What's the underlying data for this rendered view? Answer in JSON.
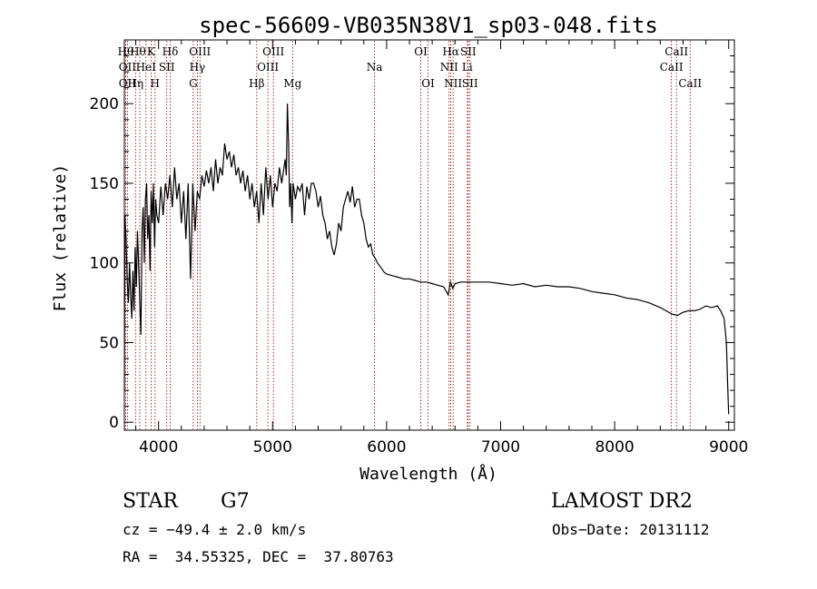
{
  "chart_data": {
    "type": "line",
    "title": "spec-56609-VB035N38V1_sp03-048.fits",
    "xlabel": "Wavelength (Å)",
    "ylabel": "Flux (relative)",
    "xlim": [
      3700,
      9050
    ],
    "ylim": [
      -5,
      240
    ],
    "xticks": [
      4000,
      5000,
      6000,
      7000,
      8000,
      9000
    ],
    "yticks": [
      0,
      50,
      100,
      150,
      200
    ],
    "series": [
      {
        "name": "spectrum",
        "x": [
          3700,
          3705,
          3715,
          3725,
          3735,
          3745,
          3755,
          3765,
          3775,
          3785,
          3795,
          3805,
          3815,
          3825,
          3835,
          3845,
          3855,
          3865,
          3875,
          3885,
          3895,
          3905,
          3915,
          3925,
          3935,
          3945,
          3955,
          3965,
          3975,
          3985,
          4000,
          4020,
          4040,
          4060,
          4080,
          4100,
          4120,
          4140,
          4160,
          4180,
          4200,
          4220,
          4240,
          4260,
          4280,
          4300,
          4320,
          4340,
          4360,
          4380,
          4400,
          4420,
          4440,
          4460,
          4480,
          4500,
          4520,
          4540,
          4560,
          4580,
          4600,
          4620,
          4640,
          4660,
          4680,
          4700,
          4720,
          4740,
          4760,
          4780,
          4800,
          4820,
          4840,
          4860,
          4880,
          4900,
          4920,
          4940,
          4960,
          4980,
          5000,
          5020,
          5040,
          5060,
          5080,
          5100,
          5110,
          5120,
          5130,
          5140,
          5150,
          5160,
          5170,
          5180,
          5200,
          5220,
          5240,
          5260,
          5280,
          5300,
          5320,
          5340,
          5360,
          5380,
          5400,
          5420,
          5440,
          5460,
          5480,
          5500,
          5520,
          5540,
          5560,
          5580,
          5600,
          5620,
          5640,
          5660,
          5680,
          5700,
          5720,
          5740,
          5760,
          5780,
          5800,
          5820,
          5840,
          5860,
          5880,
          5900,
          5920,
          5940,
          5960,
          5980,
          6000,
          6050,
          6100,
          6150,
          6200,
          6250,
          6300,
          6350,
          6400,
          6450,
          6500,
          6540,
          6560,
          6570,
          6580,
          6600,
          6650,
          6700,
          6750,
          6800,
          6900,
          7000,
          7100,
          7200,
          7300,
          7400,
          7500,
          7600,
          7700,
          7800,
          7900,
          8000,
          8100,
          8200,
          8300,
          8400,
          8450,
          8500,
          8550,
          8600,
          8650,
          8700,
          8750,
          8800,
          8850,
          8900,
          8930,
          8960,
          8980,
          8990,
          9000
        ],
        "y": [
          20,
          130,
          115,
          90,
          75,
          100,
          80,
          65,
          95,
          70,
          110,
          85,
          120,
          100,
          75,
          55,
          120,
          135,
          100,
          140,
          150,
          115,
          130,
          95,
          145,
          125,
          150,
          110,
          140,
          130,
          125,
          148,
          130,
          150,
          140,
          155,
          135,
          160,
          140,
          150,
          125,
          145,
          115,
          150,
          90,
          150,
          120,
          145,
          140,
          155,
          148,
          158,
          150,
          160,
          145,
          165,
          150,
          160,
          155,
          175,
          165,
          170,
          160,
          168,
          155,
          160,
          150,
          158,
          145,
          155,
          140,
          150,
          135,
          145,
          125,
          150,
          130,
          160,
          140,
          155,
          135,
          150,
          145,
          160,
          150,
          160,
          165,
          155,
          200,
          175,
          135,
          150,
          125,
          150,
          140,
          148,
          145,
          150,
          130,
          148,
          140,
          150,
          150,
          145,
          135,
          142,
          130,
          125,
          115,
          120,
          110,
          105,
          112,
          125,
          120,
          135,
          140,
          145,
          138,
          148,
          135,
          140,
          140,
          130,
          125,
          115,
          110,
          112,
          105,
          103,
          100,
          98,
          96,
          94,
          93,
          92,
          91,
          90,
          90,
          89,
          88,
          88,
          87,
          86,
          85,
          80,
          88,
          86,
          84,
          87,
          88,
          88,
          88,
          88,
          88,
          87,
          86,
          87,
          85,
          86,
          85,
          85,
          84,
          82,
          81,
          80,
          78,
          77,
          75,
          72,
          70,
          68,
          67,
          69,
          70,
          70,
          71,
          73,
          72,
          73,
          70,
          65,
          50,
          25,
          5
        ]
      }
    ],
    "lines": [
      {
        "wl": 3712,
        "label": "Hθ",
        "row": 1,
        "hshift": 0
      },
      {
        "wl": 3727,
        "label": "OII",
        "row": 2,
        "hshift": 0
      },
      {
        "wl": 3727,
        "label": "OII",
        "row": 3,
        "hshift": 0
      },
      {
        "wl": 3798,
        "label": "Hη",
        "row": 3,
        "hshift": 0
      },
      {
        "wl": 3835,
        "label": "Hθ",
        "row": 1,
        "hshift": -2
      },
      {
        "wl": 3889,
        "label": "HeI",
        "row": 2,
        "hshift": 0
      },
      {
        "wl": 3934,
        "label": "K",
        "row": 1,
        "hshift": 0
      },
      {
        "wl": 3969,
        "label": "H",
        "row": 3,
        "hshift": 0
      },
      {
        "wl": 4072,
        "label": "SII",
        "row": 2,
        "hshift": 0
      },
      {
        "wl": 4102,
        "label": "Hδ",
        "row": 1,
        "hshift": 0
      },
      {
        "wl": 4304,
        "label": "G",
        "row": 3,
        "hshift": 0
      },
      {
        "wl": 4340,
        "label": "Hγ",
        "row": 2,
        "hshift": 0
      },
      {
        "wl": 4363,
        "label": "OIII",
        "row": 1,
        "hshift": 0
      },
      {
        "wl": 4861,
        "label": "Hβ",
        "row": 3,
        "hshift": 0
      },
      {
        "wl": 4959,
        "label": "OIII",
        "row": 2,
        "hshift": 0
      },
      {
        "wl": 5007,
        "label": "OIII",
        "row": 1,
        "hshift": 0
      },
      {
        "wl": 5175,
        "label": "Mg",
        "row": 3,
        "hshift": 0
      },
      {
        "wl": 5894,
        "label": "Na",
        "row": 2,
        "hshift": 0
      },
      {
        "wl": 6300,
        "label": "OI",
        "row": 1,
        "hshift": 0
      },
      {
        "wl": 6363,
        "label": "OI",
        "row": 3,
        "hshift": 0
      },
      {
        "wl": 6548,
        "label": "NII",
        "row": 2,
        "hshift": 0
      },
      {
        "wl": 6563,
        "label": "Hα",
        "row": 1,
        "hshift": 0
      },
      {
        "wl": 6583,
        "label": "NII",
        "row": 3,
        "hshift": 0
      },
      {
        "wl": 6708,
        "label": "Li",
        "row": 2,
        "hshift": 0
      },
      {
        "wl": 6716,
        "label": "SII",
        "row": 1,
        "hshift": 0
      },
      {
        "wl": 6731,
        "label": "SII",
        "row": 3,
        "hshift": 0
      },
      {
        "wl": 8498,
        "label": "CaII",
        "row": 2,
        "hshift": 0
      },
      {
        "wl": 8542,
        "label": "CaII",
        "row": 1,
        "hshift": 0
      },
      {
        "wl": 8662,
        "label": "CaII",
        "row": 3,
        "hshift": 0
      }
    ],
    "colors": {
      "line_marker": "#8b0000",
      "spectrum": "#000000"
    }
  },
  "info": {
    "object_class": "STAR",
    "subclass": "G7",
    "survey": "LAMOST DR2",
    "cz": "cz = −49.4 ± 2.0 km/s",
    "obs_date": "Obs−Date: 20131112",
    "radec": "RA =  34.55325, DEC =  37.80763"
  }
}
